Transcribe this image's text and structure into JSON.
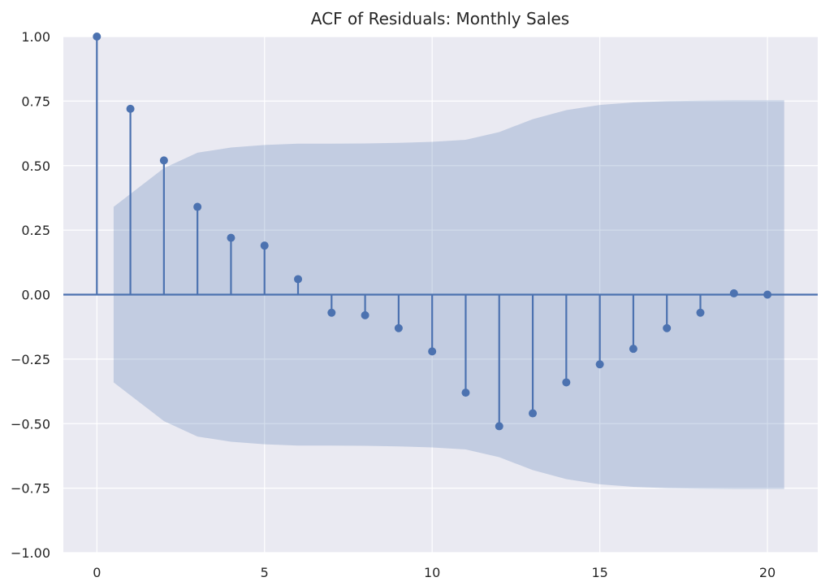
{
  "chart_data": {
    "type": "stem",
    "title": "ACF of Residuals: Monthly Sales",
    "xlabel": "",
    "ylabel": "",
    "xlim": [
      -1,
      21.5
    ],
    "ylim": [
      -1.0,
      1.0
    ],
    "x_ticks": [
      0,
      5,
      10,
      15,
      20
    ],
    "x_tick_labels": [
      "0",
      "5",
      "10",
      "15",
      "20"
    ],
    "y_ticks": [
      1.0,
      0.75,
      0.5,
      0.25,
      0.0,
      -0.25,
      -0.5,
      -0.75,
      -1.0
    ],
    "y_tick_labels": [
      "1.00",
      "0.75",
      "0.50",
      "0.25",
      "0.00",
      "−0.25",
      "−0.50",
      "−0.75",
      "−1.00"
    ],
    "grid": true,
    "lags": [
      0,
      1,
      2,
      3,
      4,
      5,
      6,
      7,
      8,
      9,
      10,
      11,
      12,
      13,
      14,
      15,
      16,
      17,
      18,
      19,
      20
    ],
    "values": [
      1.0,
      0.72,
      0.52,
      0.34,
      0.22,
      0.19,
      0.06,
      -0.07,
      -0.08,
      -0.13,
      -0.22,
      -0.38,
      -0.51,
      -0.46,
      -0.34,
      -0.27,
      -0.21,
      -0.13,
      -0.07,
      0.005,
      0.0
    ],
    "confidence_band": {
      "lags": [
        0.5,
        1,
        2,
        3,
        4,
        5,
        6,
        7,
        8,
        9,
        10,
        11,
        12,
        13,
        14,
        15,
        16,
        17,
        18,
        19,
        20,
        20.5
      ],
      "upper": [
        0.34,
        0.39,
        0.49,
        0.55,
        0.57,
        0.58,
        0.585,
        0.585,
        0.586,
        0.588,
        0.592,
        0.6,
        0.63,
        0.68,
        0.715,
        0.735,
        0.745,
        0.75,
        0.752,
        0.753,
        0.753,
        0.753
      ]
    },
    "colors": {
      "stem": "#4c72b0",
      "band": "#4c72b0",
      "band_opacity": 0.25,
      "plot_background": "#eaeaf2",
      "grid": "#ffffff"
    }
  }
}
